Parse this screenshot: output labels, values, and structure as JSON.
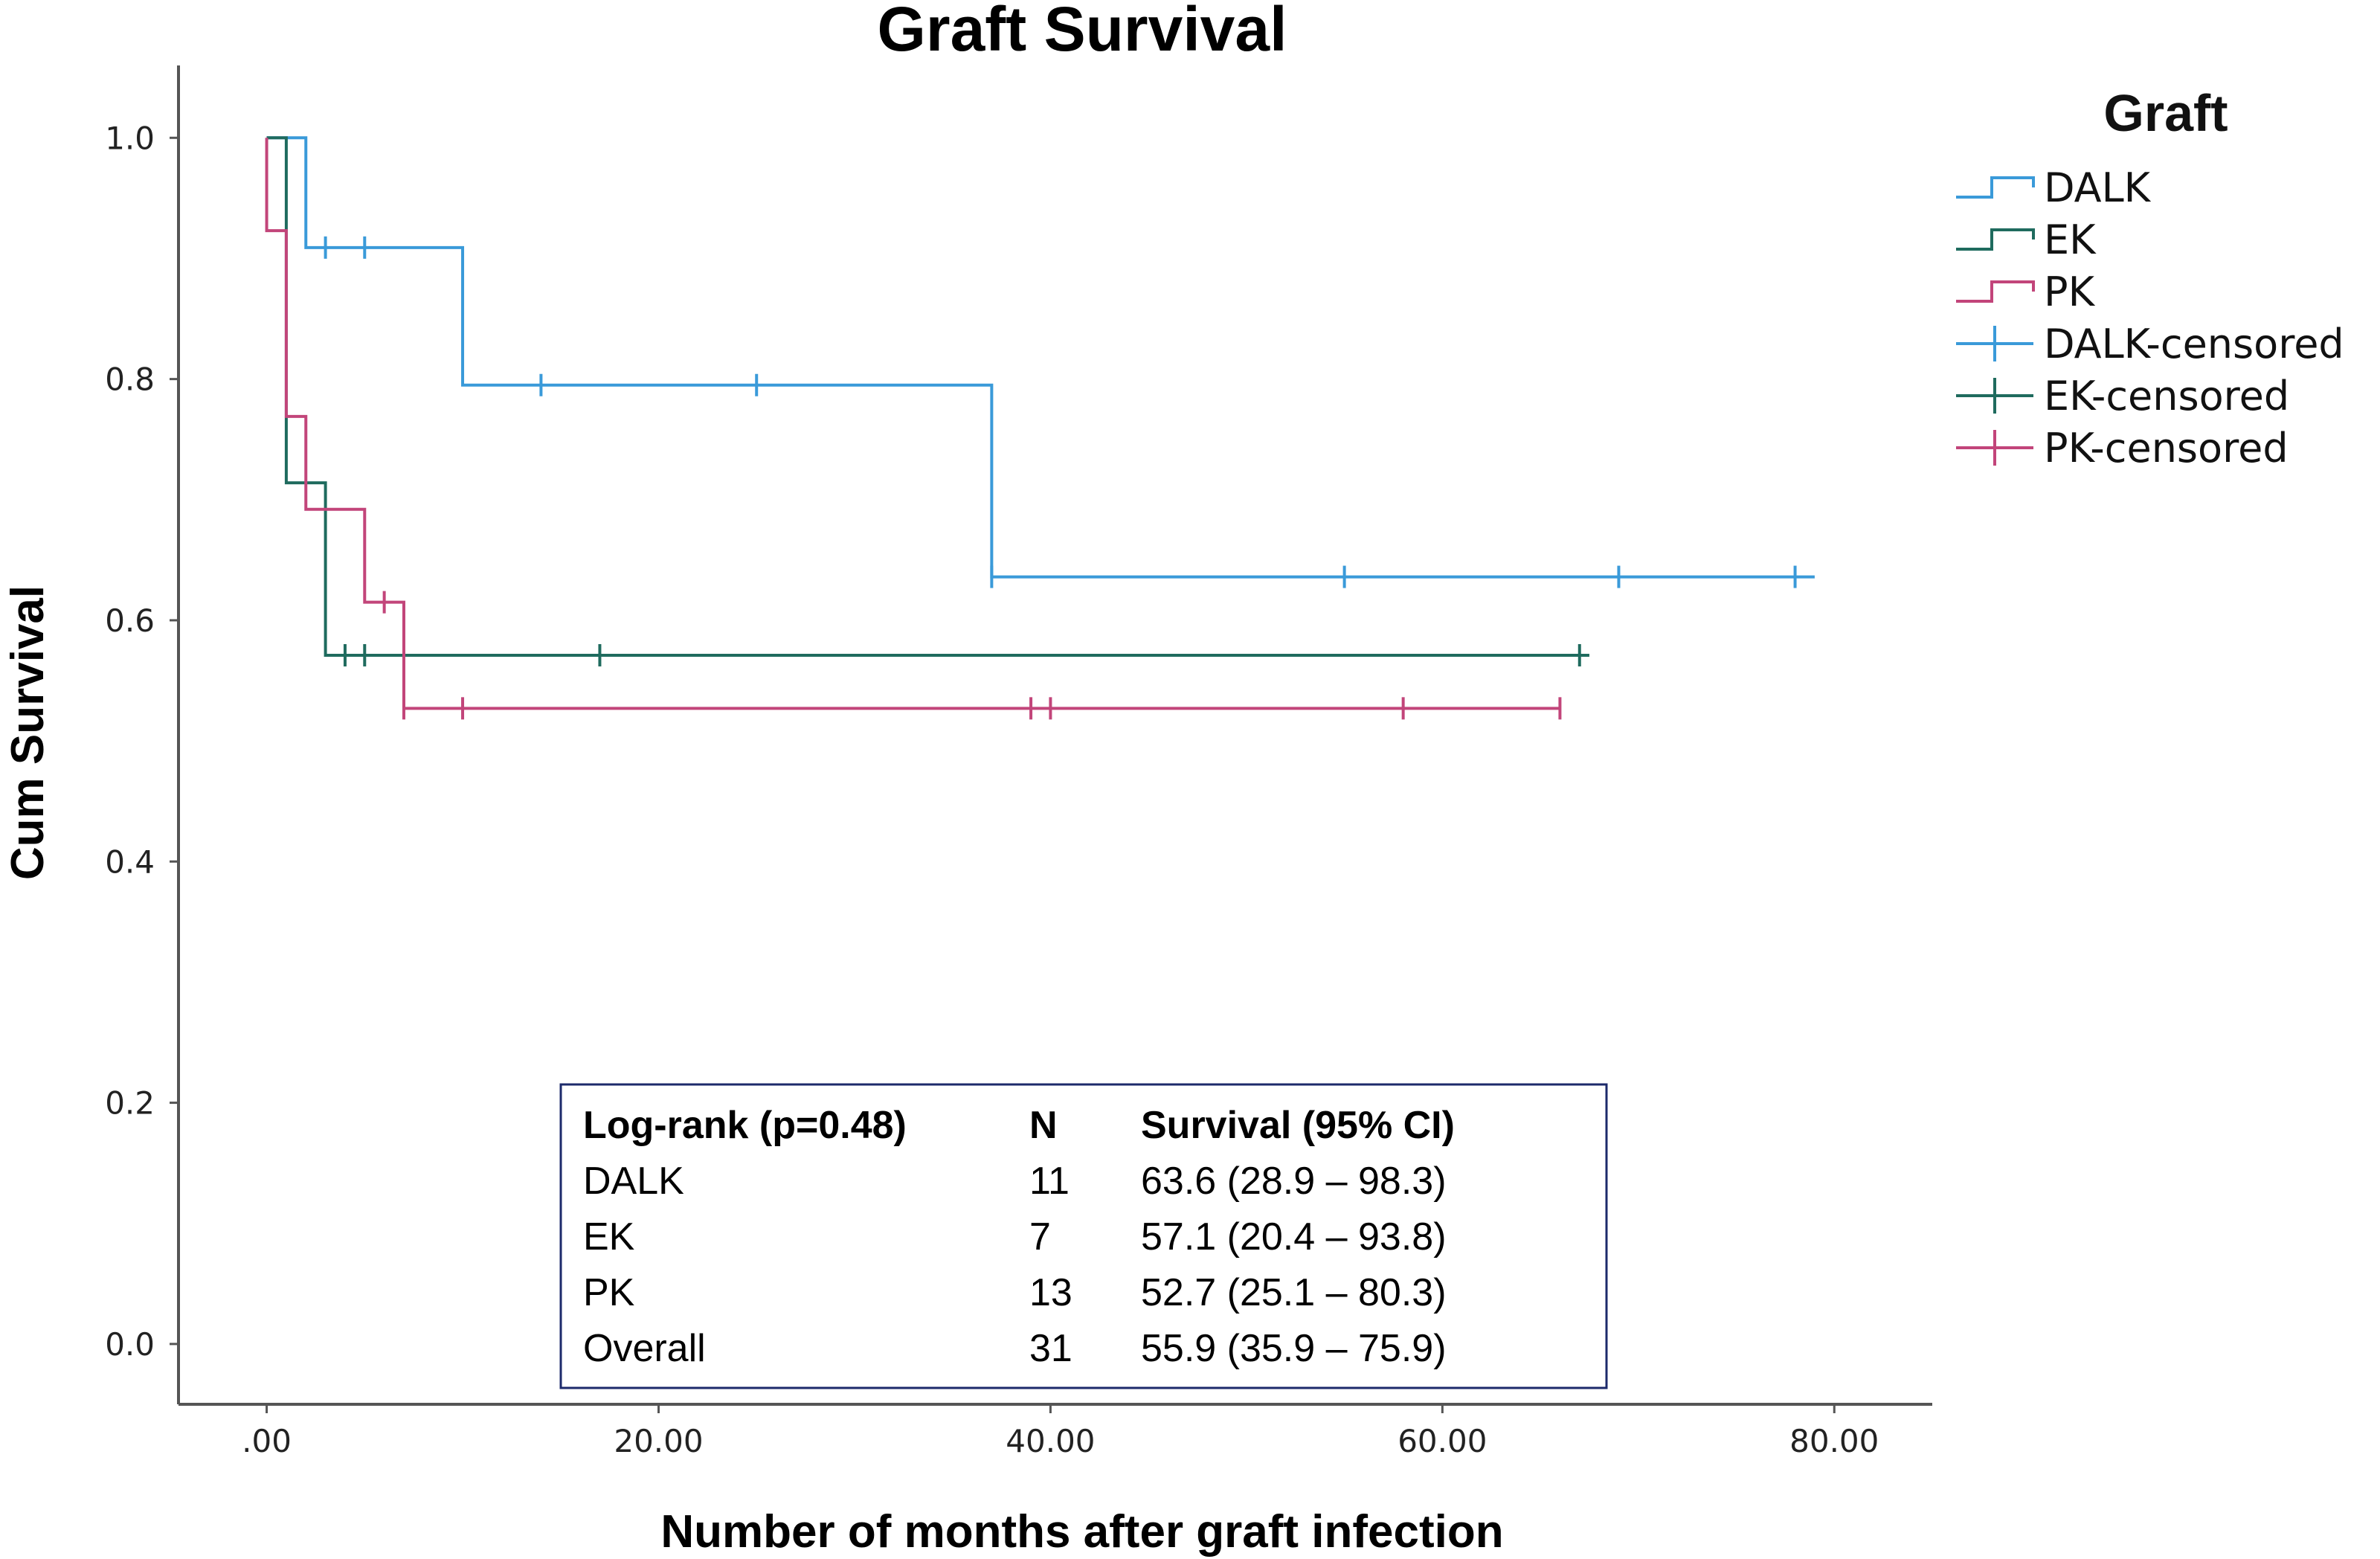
{
  "chart_data": {
    "type": "line",
    "title": "Graft Survival",
    "xlabel": "Number of months after graft infection",
    "ylabel": "Cum Survival",
    "xlim": [
      -4.5,
      85
    ],
    "ylim": [
      -0.05,
      1.06
    ],
    "x_ticks": [
      {
        "value": 0,
        "label": ".00"
      },
      {
        "value": 20,
        "label": "20.00"
      },
      {
        "value": 40,
        "label": "40.00"
      },
      {
        "value": 60,
        "label": "60.00"
      },
      {
        "value": 80,
        "label": "80.00"
      }
    ],
    "y_ticks": [
      {
        "value": 0.0,
        "label": "0.0"
      },
      {
        "value": 0.2,
        "label": "0.2"
      },
      {
        "value": 0.4,
        "label": "0.4"
      },
      {
        "value": 0.6,
        "label": "0.6"
      },
      {
        "value": 0.8,
        "label": "0.8"
      },
      {
        "value": 1.0,
        "label": "1.0"
      }
    ],
    "series": [
      {
        "name": "DALK",
        "color": "#3a9ad9",
        "steps": [
          [
            0,
            1.0
          ],
          [
            2,
            0.909
          ],
          [
            10,
            0.795
          ],
          [
            37,
            0.636
          ],
          [
            79,
            0.636
          ]
        ],
        "censored": [
          3,
          5,
          14,
          25,
          37,
          55,
          69,
          78
        ]
      },
      {
        "name": "EK",
        "color": "#1f6b5e",
        "steps": [
          [
            0,
            1.0
          ],
          [
            1,
            0.714
          ],
          [
            3,
            0.571
          ],
          [
            67.5,
            0.571
          ]
        ],
        "censored": [
          4,
          5,
          17,
          67
        ]
      },
      {
        "name": "PK",
        "color": "#c2457a",
        "steps": [
          [
            0,
            1.0
          ],
          [
            0,
            0.923
          ],
          [
            1,
            0.769
          ],
          [
            2,
            0.692
          ],
          [
            5,
            0.615
          ],
          [
            7,
            0.527
          ],
          [
            66,
            0.527
          ]
        ],
        "censored": [
          6,
          7,
          10,
          39,
          40,
          58,
          66
        ]
      }
    ],
    "legend": {
      "title": "Graft",
      "position": "top-right",
      "entries": [
        "DALK",
        "EK",
        "PK",
        "DALK-censored",
        "EK-censored",
        "PK-censored"
      ]
    },
    "annotation_table": {
      "header": [
        "Log-rank (p=0.48)",
        "N",
        "Survival (95% CI)"
      ],
      "rows": [
        [
          "DALK",
          "11",
          "63.6 (28.9 – 98.3)"
        ],
        [
          "EK",
          "7",
          "57.1 (20.4 – 93.8)"
        ],
        [
          "PK",
          "13",
          "52.7 (25.1 – 80.3)"
        ],
        [
          "Overall",
          "31",
          "55.9 (35.9 – 75.9)"
        ]
      ],
      "border_color": "#1c2a6b"
    }
  }
}
